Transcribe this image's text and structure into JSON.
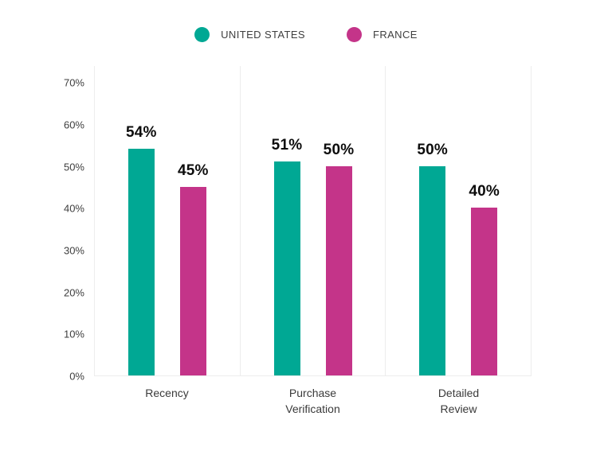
{
  "page": {
    "background": "#ffffff"
  },
  "legend": {
    "position": "top",
    "items": [
      {
        "label": "UNITED STATES",
        "color": "#00a894",
        "swatch": "circle-icon"
      },
      {
        "label": "FRANCE",
        "color": "#c43489",
        "swatch": "circle-icon"
      }
    ]
  },
  "chart_data": {
    "type": "bar",
    "title": "",
    "xlabel": "",
    "ylabel": "",
    "categories": [
      "Recency",
      "Purchase\nVerification",
      "Detailed\nReview"
    ],
    "series": [
      {
        "name": "UNITED STATES",
        "color": "#00a894",
        "values": [
          54,
          51,
          50
        ],
        "value_labels": [
          "54%",
          "51%",
          "50%"
        ]
      },
      {
        "name": "FRANCE",
        "color": "#c43489",
        "values": [
          45,
          50,
          40
        ],
        "value_labels": [
          "45%",
          "50%",
          "40%"
        ]
      }
    ],
    "yticks": [
      0,
      10,
      20,
      30,
      40,
      50,
      60,
      70
    ],
    "ytick_labels": [
      "0%",
      "10%",
      "20%",
      "30%",
      "40%",
      "50%",
      "60%",
      "70%"
    ],
    "ylim": [
      0,
      74
    ],
    "grid": false,
    "panel_separators": true,
    "axis_line_color": "#ededed",
    "value_label_color": "#0d0d0d",
    "tick_label_color": "#3e3e3e",
    "legend_position": "top"
  }
}
